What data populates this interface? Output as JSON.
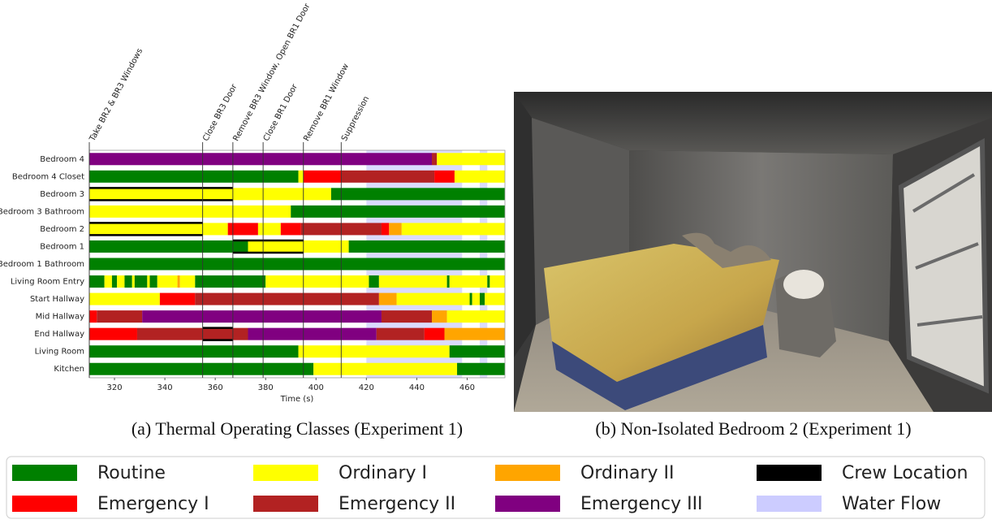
{
  "chart_data": {
    "type": "timeline",
    "x_label": "Time (s)",
    "xlim": [
      310,
      475
    ],
    "xticks": [
      320,
      340,
      360,
      380,
      400,
      420,
      440,
      460
    ],
    "caption": "(a) Thermal Operating Classes (Experiment 1)",
    "classes": [
      {
        "name": "Routine",
        "color": "#008000"
      },
      {
        "name": "Ordinary I",
        "color": "#ffff00"
      },
      {
        "name": "Ordinary II",
        "color": "#ffa500"
      },
      {
        "name": "Crew Location",
        "color": "#000000"
      },
      {
        "name": "Emergency I",
        "color": "#ff0000"
      },
      {
        "name": "Emergency II",
        "color": "#b22222"
      },
      {
        "name": "Emergency III",
        "color": "#800080"
      },
      {
        "name": "Water Flow",
        "color": "#ccccff"
      }
    ],
    "events": [
      {
        "time": 310,
        "label": "Take BR2 & BR3 Windows"
      },
      {
        "time": 355,
        "label": "Close BR3 Door"
      },
      {
        "time": 367,
        "label": "Remove BR3 Window, Open BR1 Door"
      },
      {
        "time": 379,
        "label": "Close BR1 Door"
      },
      {
        "time": 395,
        "label": "Remove BR1 Window"
      },
      {
        "time": 410,
        "label": "Suppression"
      }
    ],
    "water_flow": [
      [
        420,
        458
      ],
      [
        465,
        468
      ]
    ],
    "rows": [
      {
        "name": "Bedroom 4",
        "segments": [
          [
            310,
            446,
            6
          ],
          [
            446,
            448,
            5
          ],
          [
            448,
            475,
            1
          ]
        ],
        "crew": []
      },
      {
        "name": "Bedroom 4 Closet",
        "segments": [
          [
            310,
            393,
            0
          ],
          [
            393,
            395,
            1
          ],
          [
            395,
            410,
            4
          ],
          [
            410,
            447,
            5
          ],
          [
            447,
            455,
            4
          ],
          [
            455,
            475,
            1
          ]
        ],
        "crew": []
      },
      {
        "name": "Bedroom 3",
        "segments": [
          [
            310,
            406,
            1
          ],
          [
            406,
            475,
            0
          ]
        ],
        "crew": [
          [
            310,
            367
          ]
        ]
      },
      {
        "name": "Bedroom 3 Bathroom",
        "segments": [
          [
            310,
            390,
            1
          ],
          [
            390,
            475,
            0
          ]
        ],
        "crew": []
      },
      {
        "name": "Bedroom 2",
        "segments": [
          [
            310,
            365,
            1
          ],
          [
            365,
            377,
            4
          ],
          [
            377,
            386,
            1
          ],
          [
            386,
            394,
            4
          ],
          [
            394,
            426,
            5
          ],
          [
            426,
            429,
            4
          ],
          [
            429,
            434,
            2
          ],
          [
            434,
            475,
            1
          ]
        ],
        "crew": [
          [
            310,
            355
          ]
        ]
      },
      {
        "name": "Bedroom 1",
        "segments": [
          [
            310,
            373,
            0
          ],
          [
            373,
            413,
            1
          ],
          [
            413,
            475,
            0
          ]
        ],
        "crew": [
          [
            367,
            395
          ]
        ]
      },
      {
        "name": "Bedroom 1 Bathroom",
        "segments": [
          [
            310,
            475,
            0
          ]
        ],
        "crew": []
      },
      {
        "name": "Living Room Entry",
        "segments": [
          [
            310,
            316,
            0
          ],
          [
            316,
            319,
            1
          ],
          [
            319,
            321,
            0
          ],
          [
            321,
            324,
            1
          ],
          [
            324,
            327,
            0
          ],
          [
            327,
            328,
            1
          ],
          [
            328,
            333,
            0
          ],
          [
            333,
            334,
            1
          ],
          [
            334,
            337,
            0
          ],
          [
            337,
            345,
            1
          ],
          [
            345,
            346,
            2
          ],
          [
            346,
            352,
            1
          ],
          [
            352,
            380,
            0
          ],
          [
            380,
            421,
            1
          ],
          [
            421,
            425,
            0
          ],
          [
            425,
            452,
            1
          ],
          [
            452,
            453,
            0
          ],
          [
            453,
            468,
            1
          ],
          [
            468,
            469,
            0
          ],
          [
            469,
            475,
            1
          ]
        ],
        "crew": []
      },
      {
        "name": "Start Hallway",
        "segments": [
          [
            310,
            338,
            1
          ],
          [
            338,
            352,
            4
          ],
          [
            352,
            425,
            5
          ],
          [
            425,
            432,
            2
          ],
          [
            432,
            461,
            1
          ],
          [
            461,
            462,
            0
          ],
          [
            462,
            465,
            1
          ],
          [
            465,
            467,
            0
          ],
          [
            467,
            475,
            1
          ]
        ],
        "crew": []
      },
      {
        "name": "Mid Hallway",
        "segments": [
          [
            310,
            313,
            4
          ],
          [
            313,
            331,
            5
          ],
          [
            331,
            426,
            6
          ],
          [
            426,
            446,
            5
          ],
          [
            446,
            452,
            2
          ],
          [
            452,
            475,
            1
          ]
        ],
        "crew": []
      },
      {
        "name": "End Hallway",
        "segments": [
          [
            310,
            329,
            4
          ],
          [
            329,
            373,
            5
          ],
          [
            373,
            424,
            6
          ],
          [
            424,
            443,
            5
          ],
          [
            443,
            451,
            4
          ],
          [
            451,
            475,
            2
          ]
        ],
        "crew": [
          [
            355,
            367
          ]
        ]
      },
      {
        "name": "Living Room",
        "segments": [
          [
            310,
            393,
            0
          ],
          [
            393,
            453,
            1
          ],
          [
            453,
            475,
            0
          ]
        ],
        "crew": []
      },
      {
        "name": "Kitchen",
        "segments": [
          [
            310,
            399,
            0
          ],
          [
            399,
            456,
            1
          ],
          [
            456,
            475,
            0
          ]
        ],
        "crew": []
      }
    ]
  },
  "photo": {
    "caption": "(b) Non-Isolated Bedroom 2 (Experiment 1)"
  }
}
